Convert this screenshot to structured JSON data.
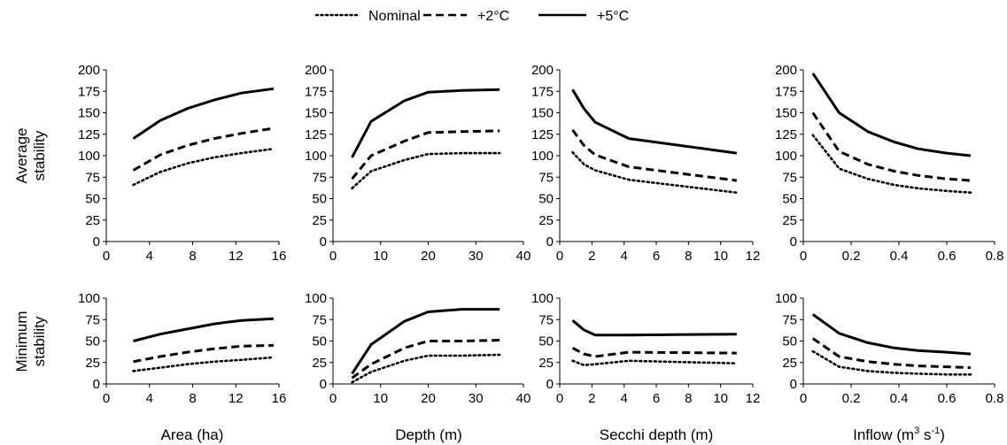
{
  "legend": {
    "entries": [
      {
        "label": "Nominal",
        "style": "dotted"
      },
      {
        "label": "+2°C",
        "style": "dashed"
      },
      {
        "label": "+5°C",
        "style": "solid"
      }
    ]
  },
  "row_labels": [
    {
      "line1": "Average",
      "line2": "stability"
    },
    {
      "line1": "Minimum",
      "line2": "stability"
    }
  ],
  "column_labels": [
    "Area (ha)",
    "Depth (m)",
    "Secchi depth (m)",
    "Inflow (m"
  ],
  "column_label_suffix": {
    "sup1": "3",
    "mid": " s",
    "sup2": "-1",
    "end": ")"
  },
  "chart_data": [
    {
      "type": "line",
      "row": 0,
      "col": 0,
      "xlim": [
        0,
        16
      ],
      "xticks": [
        0,
        4,
        8,
        12,
        16
      ],
      "ylim": [
        0,
        200
      ],
      "yticks": [
        0,
        25,
        50,
        75,
        100,
        125,
        150,
        175,
        200
      ],
      "x": [
        2.5,
        5,
        7.5,
        10,
        12.5,
        15.5
      ],
      "series": [
        {
          "name": "Nominal",
          "values": [
            66,
            81,
            91,
            98,
            103,
            108
          ]
        },
        {
          "name": "+2°C",
          "values": [
            83,
            101,
            112,
            120,
            126,
            132
          ]
        },
        {
          "name": "+5°C",
          "values": [
            120,
            141,
            155,
            165,
            173,
            178
          ]
        }
      ]
    },
    {
      "type": "line",
      "row": 0,
      "col": 1,
      "xlim": [
        0,
        40
      ],
      "xticks": [
        0,
        10,
        20,
        30,
        40
      ],
      "ylim": [
        0,
        200
      ],
      "yticks": [
        0,
        25,
        50,
        75,
        100,
        125,
        150,
        175,
        200
      ],
      "x": [
        4,
        8,
        15,
        20,
        27,
        35
      ],
      "series": [
        {
          "name": "Nominal",
          "values": [
            62,
            82,
            95,
            102,
            103,
            103
          ]
        },
        {
          "name": "+2°C",
          "values": [
            73,
            100,
            117,
            127,
            128,
            129
          ]
        },
        {
          "name": "+5°C",
          "values": [
            98,
            140,
            164,
            174,
            176,
            177
          ]
        }
      ]
    },
    {
      "type": "line",
      "row": 0,
      "col": 2,
      "xlim": [
        0,
        12
      ],
      "xticks": [
        0,
        2,
        4,
        6,
        8,
        10,
        12
      ],
      "ylim": [
        0,
        200
      ],
      "yticks": [
        0,
        25,
        50,
        75,
        100,
        125,
        150,
        175,
        200
      ],
      "x": [
        0.8,
        1.5,
        2.2,
        4.3,
        11
      ],
      "series": [
        {
          "name": "Nominal",
          "values": [
            104,
            90,
            83,
            72,
            57
          ]
        },
        {
          "name": "+2°C",
          "values": [
            130,
            112,
            101,
            87,
            71
          ]
        },
        {
          "name": "+5°C",
          "values": [
            177,
            155,
            139,
            120,
            103
          ]
        }
      ]
    },
    {
      "type": "line",
      "row": 0,
      "col": 3,
      "xlim": [
        0,
        0.8
      ],
      "xticks": [
        0,
        0.2,
        0.4,
        0.6,
        0.8
      ],
      "ylim": [
        0,
        200
      ],
      "yticks": [
        0,
        25,
        50,
        75,
        100,
        125,
        150,
        175,
        200
      ],
      "x": [
        0.04,
        0.15,
        0.27,
        0.38,
        0.48,
        0.6,
        0.7
      ],
      "series": [
        {
          "name": "Nominal",
          "values": [
            124,
            85,
            73,
            66,
            62,
            59,
            57
          ]
        },
        {
          "name": "+2°C",
          "values": [
            150,
            105,
            90,
            82,
            77,
            73,
            71
          ]
        },
        {
          "name": "+5°C",
          "values": [
            196,
            150,
            128,
            116,
            108,
            103,
            100
          ]
        }
      ]
    },
    {
      "type": "line",
      "row": 1,
      "col": 0,
      "xlim": [
        0,
        16
      ],
      "xticks": [
        0,
        4,
        8,
        12,
        16
      ],
      "ylim": [
        0,
        100
      ],
      "yticks": [
        0,
        25,
        50,
        75,
        100
      ],
      "x": [
        2.5,
        5,
        7.5,
        10,
        12.5,
        15.5
      ],
      "series": [
        {
          "name": "Nominal",
          "values": [
            15,
            19,
            23,
            26,
            28,
            31
          ]
        },
        {
          "name": "+2°C",
          "values": [
            26,
            32,
            37,
            41,
            44,
            45
          ]
        },
        {
          "name": "+5°C",
          "values": [
            50,
            58,
            64,
            70,
            74,
            76
          ]
        }
      ]
    },
    {
      "type": "line",
      "row": 1,
      "col": 1,
      "xlim": [
        0,
        40
      ],
      "xticks": [
        0,
        10,
        20,
        30,
        40
      ],
      "ylim": [
        0,
        100
      ],
      "yticks": [
        0,
        25,
        50,
        75,
        100
      ],
      "x": [
        4,
        8,
        15,
        20,
        27,
        35
      ],
      "series": [
        {
          "name": "Nominal",
          "values": [
            2,
            14,
            27,
            33,
            33,
            34
          ]
        },
        {
          "name": "+2°C",
          "values": [
            7,
            23,
            42,
            50,
            50,
            51
          ]
        },
        {
          "name": "+5°C",
          "values": [
            12,
            46,
            73,
            84,
            87,
            87
          ]
        }
      ]
    },
    {
      "type": "line",
      "row": 1,
      "col": 2,
      "xlim": [
        0,
        12
      ],
      "xticks": [
        0,
        2,
        4,
        6,
        8,
        10,
        12
      ],
      "ylim": [
        0,
        100
      ],
      "yticks": [
        0,
        25,
        50,
        75,
        100
      ],
      "x": [
        0.8,
        1.5,
        2.2,
        4.3,
        11
      ],
      "series": [
        {
          "name": "Nominal",
          "values": [
            27,
            22,
            23,
            27,
            24
          ]
        },
        {
          "name": "+2°C",
          "values": [
            42,
            35,
            32,
            37,
            36
          ]
        },
        {
          "name": "+5°C",
          "values": [
            74,
            63,
            57,
            57,
            58
          ]
        }
      ]
    },
    {
      "type": "line",
      "row": 1,
      "col": 3,
      "xlim": [
        0,
        0.8
      ],
      "xticks": [
        0,
        0.2,
        0.4,
        0.6,
        0.8
      ],
      "ylim": [
        0,
        100
      ],
      "yticks": [
        0,
        25,
        50,
        75,
        100
      ],
      "x": [
        0.04,
        0.15,
        0.27,
        0.38,
        0.48,
        0.6,
        0.7
      ],
      "series": [
        {
          "name": "Nominal",
          "values": [
            38,
            20,
            15,
            13,
            12,
            11,
            11
          ]
        },
        {
          "name": "+2°C",
          "values": [
            53,
            32,
            26,
            23,
            21,
            20,
            19
          ]
        },
        {
          "name": "+5°C",
          "values": [
            81,
            59,
            48,
            42,
            39,
            37,
            35
          ]
        }
      ]
    }
  ]
}
